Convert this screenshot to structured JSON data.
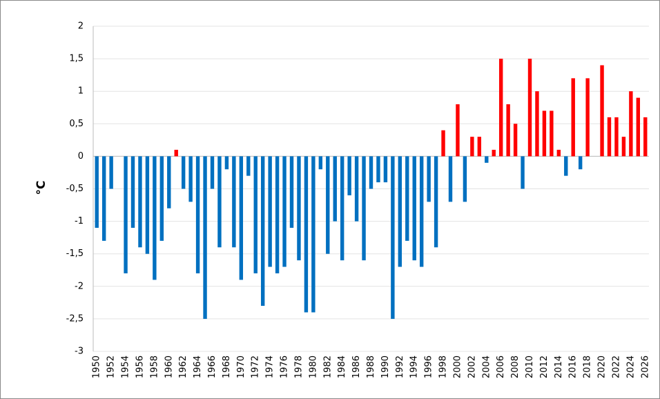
{
  "chart_data": {
    "type": "bar",
    "y_label": "°C",
    "categories": [
      "1950",
      null,
      "1952",
      null,
      "1954",
      null,
      "1956",
      null,
      "1958",
      null,
      "1960",
      null,
      "1962",
      null,
      "1964",
      null,
      "1966",
      null,
      "1968",
      null,
      "1970",
      null,
      "1972",
      null,
      "1974",
      null,
      "1976",
      null,
      "1978",
      null,
      "1980",
      null,
      "1982",
      null,
      "1984",
      null,
      "1986",
      null,
      "1988",
      null,
      "1990",
      null,
      "1992",
      null,
      "1994",
      null,
      "1996",
      null,
      "1998",
      null,
      "2000",
      null,
      "2002",
      null,
      "2004",
      null,
      "2006",
      null,
      "2008",
      null,
      "2010",
      null,
      "2012",
      null,
      "2014",
      null,
      "2016",
      null,
      "2018",
      null,
      "2020",
      null,
      "2022",
      null,
      "2024",
      null,
      "2026"
    ],
    "values": [
      -1.1,
      -1.3,
      -0.5,
      0,
      -1.8,
      -1.1,
      -1.4,
      -1.5,
      -1.9,
      -1.3,
      -0.8,
      0.1,
      -0.5,
      -0.7,
      -1.8,
      -2.5,
      -0.5,
      -1.4,
      -0.2,
      -1.4,
      -1.9,
      -0.3,
      -1.8,
      -2.3,
      -1.7,
      -1.8,
      -1.7,
      -1.1,
      -1.6,
      -2.4,
      -2.4,
      -0.2,
      -1.5,
      -1.0,
      -1.6,
      -0.6,
      -1.0,
      -1.6,
      -0.5,
      -0.4,
      -0.4,
      -2.5,
      -1.7,
      -1.3,
      -1.6,
      -1.7,
      -0.7,
      -1.4,
      0.4,
      -0.7,
      0.8,
      -0.7,
      0.3,
      0.3,
      -0.1,
      0.1,
      1.5,
      0.8,
      0.5,
      -0.5,
      1.5,
      1.0,
      0.7,
      0.7,
      0.1,
      -0.3,
      1.2,
      -0.2,
      1.2,
      0,
      1.4,
      0.6,
      0.6,
      0.3,
      1.0,
      0.9,
      0.6
    ],
    "color": "#0070c0",
    "positive_color": "#ff0000",
    "ylim": [
      -3,
      2
    ],
    "yticks": [
      -3,
      {
        "value": -2.5,
        "label": "-2,5"
      },
      -2,
      {
        "value": -1.5,
        "label": "-1,5"
      },
      -1,
      {
        "value": -0.5,
        "label": "-0,5"
      },
      0,
      {
        "value": 0.5,
        "label": "0,5"
      },
      1,
      {
        "value": 1.5,
        "label": "1,5"
      },
      2
    ],
    "grid": true
  }
}
